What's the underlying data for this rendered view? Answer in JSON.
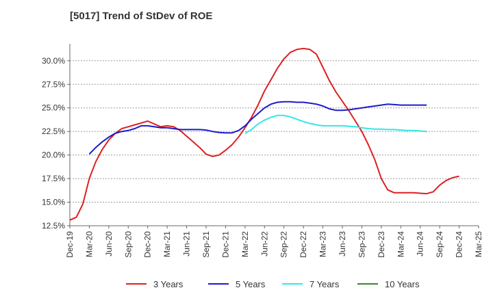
{
  "chart_data": {
    "type": "line",
    "title": "[5017]  Trend of StDev of ROE",
    "xlabel": "",
    "ylabel": "",
    "x_ticks": [
      "Dec-19",
      "Mar-20",
      "Jun-20",
      "Sep-20",
      "Dec-20",
      "Mar-21",
      "Jun-21",
      "Sep-21",
      "Dec-21",
      "Mar-22",
      "Jun-22",
      "Sep-22",
      "Dec-22",
      "Mar-23",
      "Jun-23",
      "Sep-23",
      "Dec-23",
      "Mar-24",
      "Jun-24",
      "Sep-24",
      "Dec-24",
      "Mar-25"
    ],
    "y_ticks": [
      "12.5%",
      "15.0%",
      "17.5%",
      "20.0%",
      "22.5%",
      "25.0%",
      "27.5%",
      "30.0%"
    ],
    "ylim": [
      12.5,
      31.8
    ],
    "grid": true,
    "legend_position": "bottom",
    "series": [
      {
        "name": "3 Years",
        "color": "#dd1f1f",
        "values": [
          13.1,
          13.4,
          14.8,
          17.5,
          19.3,
          20.6,
          21.6,
          22.3,
          22.8,
          23.0,
          23.2,
          23.4,
          23.6,
          23.3,
          23.0,
          23.1,
          23.0,
          22.6,
          22.0,
          21.4,
          20.8,
          20.1,
          19.85,
          20.0,
          20.5,
          21.1,
          21.9,
          22.9,
          24.0,
          25.3,
          26.8,
          28.0,
          29.2,
          30.2,
          30.9,
          31.2,
          31.3,
          31.2,
          30.7,
          29.3,
          27.9,
          26.7,
          25.7,
          24.7,
          23.6,
          22.5,
          21.1,
          19.5,
          17.5,
          16.3,
          16.0,
          16.0,
          16.0,
          16.0,
          15.95,
          15.9,
          16.1,
          16.8,
          17.3,
          17.6,
          17.75
        ],
        "x_start_index": 0
      },
      {
        "name": "5 Years",
        "color": "#1a1acc",
        "values": [
          20.1,
          20.8,
          21.4,
          21.9,
          22.3,
          22.5,
          22.6,
          22.8,
          23.1,
          23.1,
          23.0,
          22.9,
          22.9,
          22.8,
          22.7,
          22.7,
          22.7,
          22.7,
          22.65,
          22.5,
          22.4,
          22.35,
          22.35,
          22.6,
          23.1,
          23.8,
          24.4,
          25.0,
          25.4,
          25.6,
          25.65,
          25.65,
          25.6,
          25.6,
          25.5,
          25.4,
          25.2,
          24.9,
          24.75,
          24.75,
          24.8,
          24.9,
          25.0,
          25.1,
          25.2,
          25.3,
          25.4,
          25.35,
          25.3,
          25.3,
          25.3,
          25.3,
          25.3
        ],
        "x_start_index": 3
      },
      {
        "name": "7 Years",
        "color": "#33e6e6",
        "values": [
          22.3,
          22.7,
          23.3,
          23.7,
          24.0,
          24.2,
          24.2,
          24.05,
          23.8,
          23.55,
          23.35,
          23.2,
          23.1,
          23.1,
          23.1,
          23.1,
          23.05,
          23.0,
          22.9,
          22.8,
          22.75,
          22.75,
          22.7,
          22.7,
          22.65,
          22.6,
          22.6,
          22.55,
          22.5
        ],
        "x_start_index": 27
      },
      {
        "name": "10 Years",
        "color": "#2a8a2a",
        "values": [],
        "x_start_index": 0
      }
    ]
  }
}
